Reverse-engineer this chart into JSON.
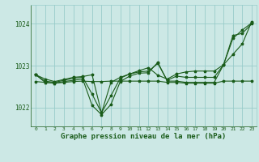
{
  "bg_color": "#cce8e5",
  "grid_color": "#99ccca",
  "line_color": "#1a5c1a",
  "marker_color": "#1a5c1a",
  "xlabel": "Graphe pression niveau de la mer (hPa)",
  "xlabel_fontsize": 6.5,
  "yticks": [
    1022,
    1023,
    1024
  ],
  "xlim": [
    -0.5,
    23.5
  ],
  "ylim": [
    1021.55,
    1024.45
  ],
  "hours": [
    0,
    1,
    2,
    3,
    4,
    5,
    6,
    7,
    8,
    9,
    10,
    11,
    12,
    13,
    14,
    15,
    16,
    17,
    18,
    19,
    20,
    21,
    22,
    23
  ],
  "line1": [
    1022.78,
    1022.68,
    1022.62,
    1022.67,
    1022.72,
    1022.74,
    1022.78,
    1021.87,
    1022.28,
    1022.7,
    1022.8,
    1022.85,
    1022.87,
    1023.05,
    1022.65,
    1022.75,
    1022.72,
    1022.72,
    1022.72,
    1022.72,
    1023.02,
    1023.65,
    1023.85,
    1024.02
  ],
  "line2": [
    1022.78,
    1022.6,
    1022.58,
    1022.62,
    1022.65,
    1022.68,
    1022.05,
    1021.83,
    1022.07,
    1022.62,
    1022.75,
    1022.82,
    1022.83,
    1023.08,
    1022.63,
    1022.63,
    1022.6,
    1022.6,
    1022.6,
    1022.6,
    1023.02,
    1023.72,
    1023.77,
    1024.0
  ],
  "line3": [
    1022.78,
    1022.63,
    1022.6,
    1022.65,
    1022.7,
    1022.72,
    1022.32,
    1021.87,
    1022.6,
    1022.72,
    1022.8,
    1022.88,
    1022.95,
    1022.77,
    1022.68,
    1022.8,
    1022.85,
    1022.87,
    1022.87,
    1022.87,
    1023.02,
    1023.27,
    1023.52,
    1024.05
  ],
  "line4": [
    1022.62,
    1022.6,
    1022.58,
    1022.6,
    1022.62,
    1022.63,
    1022.62,
    1022.62,
    1022.63,
    1022.63,
    1022.63,
    1022.63,
    1022.63,
    1022.63,
    1022.6,
    1022.6,
    1022.58,
    1022.58,
    1022.58,
    1022.58,
    1022.63,
    1022.63,
    1022.63,
    1022.63
  ]
}
